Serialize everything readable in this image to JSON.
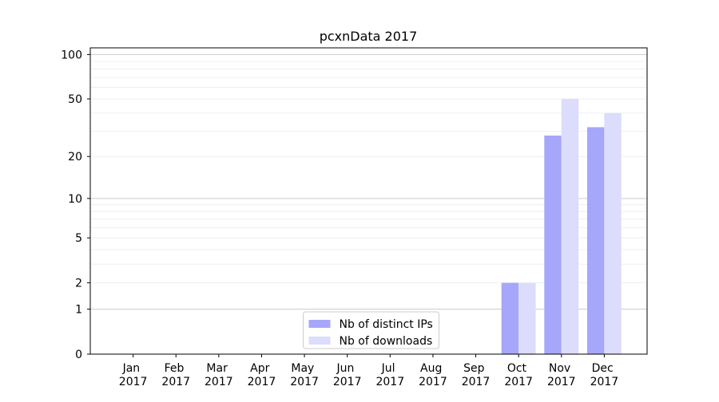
{
  "chart_data": {
    "type": "bar",
    "title": "pcxnData 2017",
    "categories": [
      "Jan 2017",
      "Feb 2017",
      "Mar 2017",
      "Apr 2017",
      "May 2017",
      "Jun 2017",
      "Jul 2017",
      "Aug 2017",
      "Sep 2017",
      "Oct 2017",
      "Nov 2017",
      "Dec 2017"
    ],
    "series": [
      {
        "name": "Nb of distinct IPs",
        "color": "#a6a6fb",
        "values": [
          0,
          0,
          0,
          0,
          0,
          0,
          0,
          0,
          0,
          2,
          28,
          32
        ]
      },
      {
        "name": "Nb of downloads",
        "color": "#dcdcfd",
        "values": [
          0,
          0,
          0,
          0,
          0,
          0,
          0,
          0,
          0,
          2,
          50,
          40
        ]
      }
    ],
    "yscale": "log1p",
    "ylim": [
      0,
      111
    ],
    "yticks": [
      0,
      1,
      2,
      5,
      10,
      20,
      50,
      100
    ],
    "ymajorgrid": [
      1,
      10,
      100
    ],
    "yminorgrid": [
      2,
      3,
      4,
      5,
      6,
      7,
      8,
      9,
      20,
      30,
      40,
      50,
      60,
      70,
      80,
      90
    ],
    "grid": true,
    "legend": "lower center"
  }
}
